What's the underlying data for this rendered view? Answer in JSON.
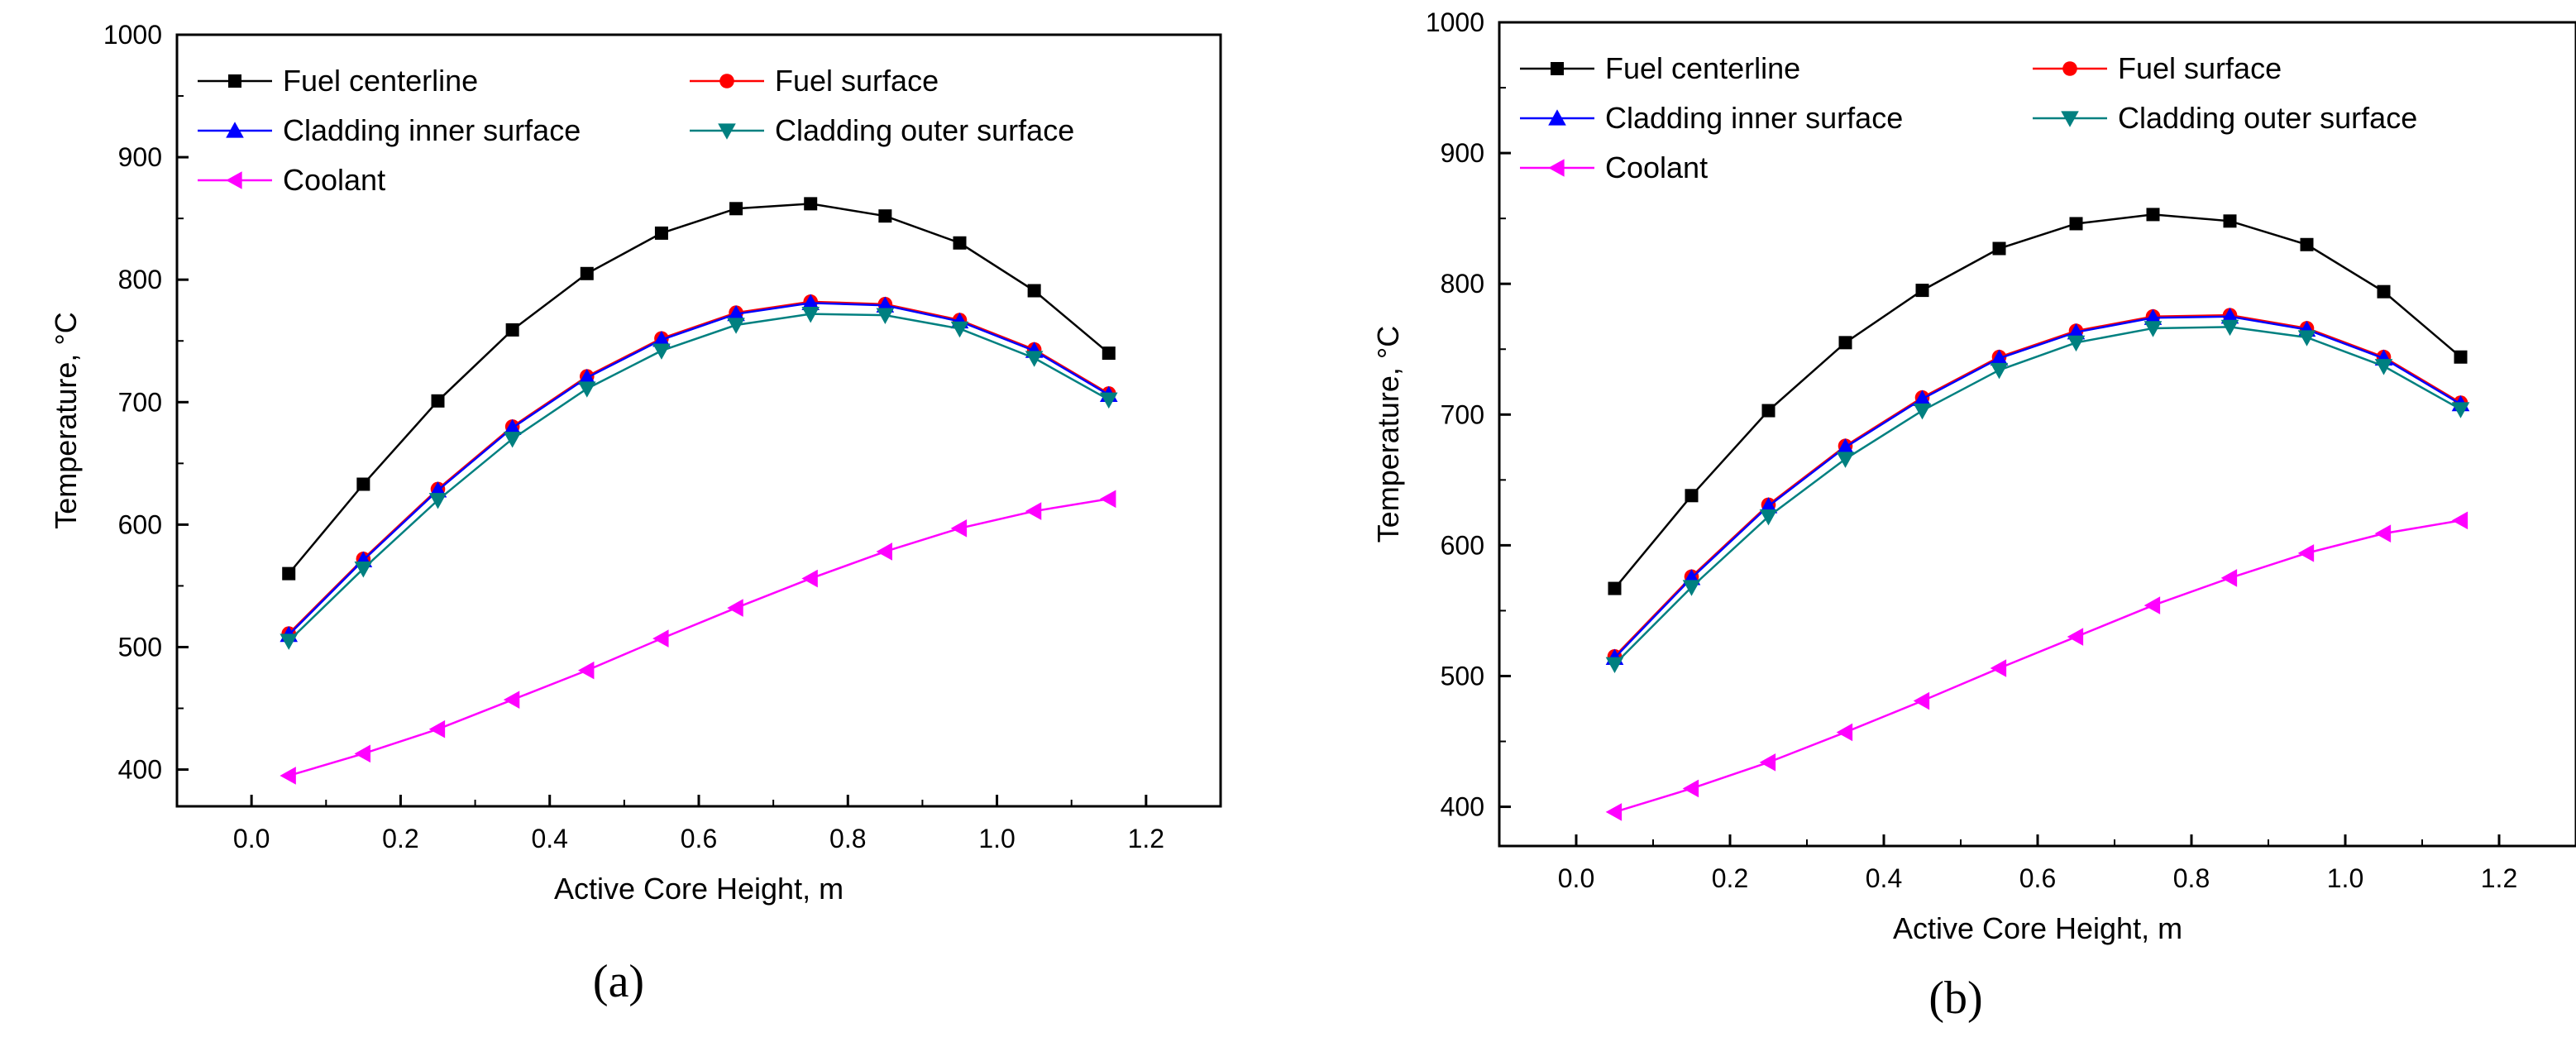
{
  "chart_data": [
    {
      "type": "line",
      "panel_label": "(a)",
      "xlabel": "Active Core Height, m",
      "ylabel": "Temperature, °C",
      "xlim": [
        -0.1,
        1.3
      ],
      "ylim": [
        370,
        1000
      ],
      "xticks": [
        0.0,
        0.2,
        0.4,
        0.6,
        0.8,
        1.0,
        1.2
      ],
      "yticks": [
        400,
        500,
        600,
        700,
        800,
        900,
        1000
      ],
      "grid": false,
      "legend_position": "top-left, two columns",
      "x": [
        0.05,
        0.15,
        0.25,
        0.35,
        0.45,
        0.55,
        0.65,
        0.75,
        0.85,
        0.95,
        1.05,
        1.15
      ],
      "series": [
        {
          "name": "Fuel centerline",
          "color": "#000000",
          "marker": "square",
          "values": [
            560,
            633,
            701,
            759,
            805,
            838,
            858,
            862,
            852,
            830,
            791,
            740
          ]
        },
        {
          "name": "Fuel surface",
          "color": "#ff0000",
          "marker": "circle",
          "values": [
            511,
            572,
            629,
            680,
            721,
            752,
            773,
            782,
            780,
            767,
            743,
            707
          ]
        },
        {
          "name": "Cladding inner surface",
          "color": "#0000ff",
          "marker": "triangle-up",
          "values": [
            510,
            571,
            628,
            679,
            720,
            751,
            772,
            781,
            779,
            766,
            742,
            706
          ]
        },
        {
          "name": "Cladding outer surface",
          "color": "#008080",
          "marker": "triangle-down",
          "values": [
            505,
            564,
            620,
            670,
            711,
            742,
            763,
            772,
            771,
            760,
            736,
            702
          ]
        },
        {
          "name": "Coolant",
          "color": "#ff00ff",
          "marker": "triangle-left",
          "values": [
            395,
            413,
            433,
            457,
            481,
            507,
            532,
            556,
            578,
            597,
            611,
            621
          ]
        }
      ]
    },
    {
      "type": "line",
      "panel_label": "(b)",
      "xlabel": "Active Core Height, m",
      "ylabel": "Temperature, °C",
      "xlim": [
        -0.1,
        1.3
      ],
      "ylim": [
        370,
        1000
      ],
      "xticks": [
        0.0,
        0.2,
        0.4,
        0.6,
        0.8,
        1.0,
        1.2
      ],
      "yticks": [
        400,
        500,
        600,
        700,
        800,
        900,
        1000
      ],
      "grid": false,
      "legend_position": "top-left, two columns",
      "x": [
        0.05,
        0.15,
        0.25,
        0.35,
        0.45,
        0.55,
        0.65,
        0.75,
        0.85,
        0.95,
        1.05,
        1.15
      ],
      "series": [
        {
          "name": "Fuel centerline",
          "color": "#000000",
          "marker": "square",
          "values": [
            567,
            638,
            703,
            755,
            795,
            827,
            846,
            853,
            848,
            830,
            794,
            744
          ]
        },
        {
          "name": "Fuel surface",
          "color": "#ff0000",
          "marker": "circle",
          "values": [
            515,
            576,
            631,
            676,
            713,
            744,
            764,
            775,
            776,
            766,
            744,
            709
          ]
        },
        {
          "name": "Cladding inner surface",
          "color": "#0000ff",
          "marker": "triangle-up",
          "values": [
            514,
            575,
            630,
            675,
            712,
            743,
            763,
            774,
            775,
            765,
            743,
            708
          ]
        },
        {
          "name": "Cladding outer surface",
          "color": "#008080",
          "marker": "triangle-down",
          "values": [
            509,
            568,
            622,
            666,
            703,
            734,
            755,
            766,
            767,
            759,
            737,
            704
          ]
        },
        {
          "name": "Coolant",
          "color": "#ff00ff",
          "marker": "triangle-left",
          "values": [
            396,
            414,
            434,
            457,
            481,
            506,
            530,
            554,
            575,
            594,
            609,
            619
          ]
        }
      ]
    }
  ]
}
